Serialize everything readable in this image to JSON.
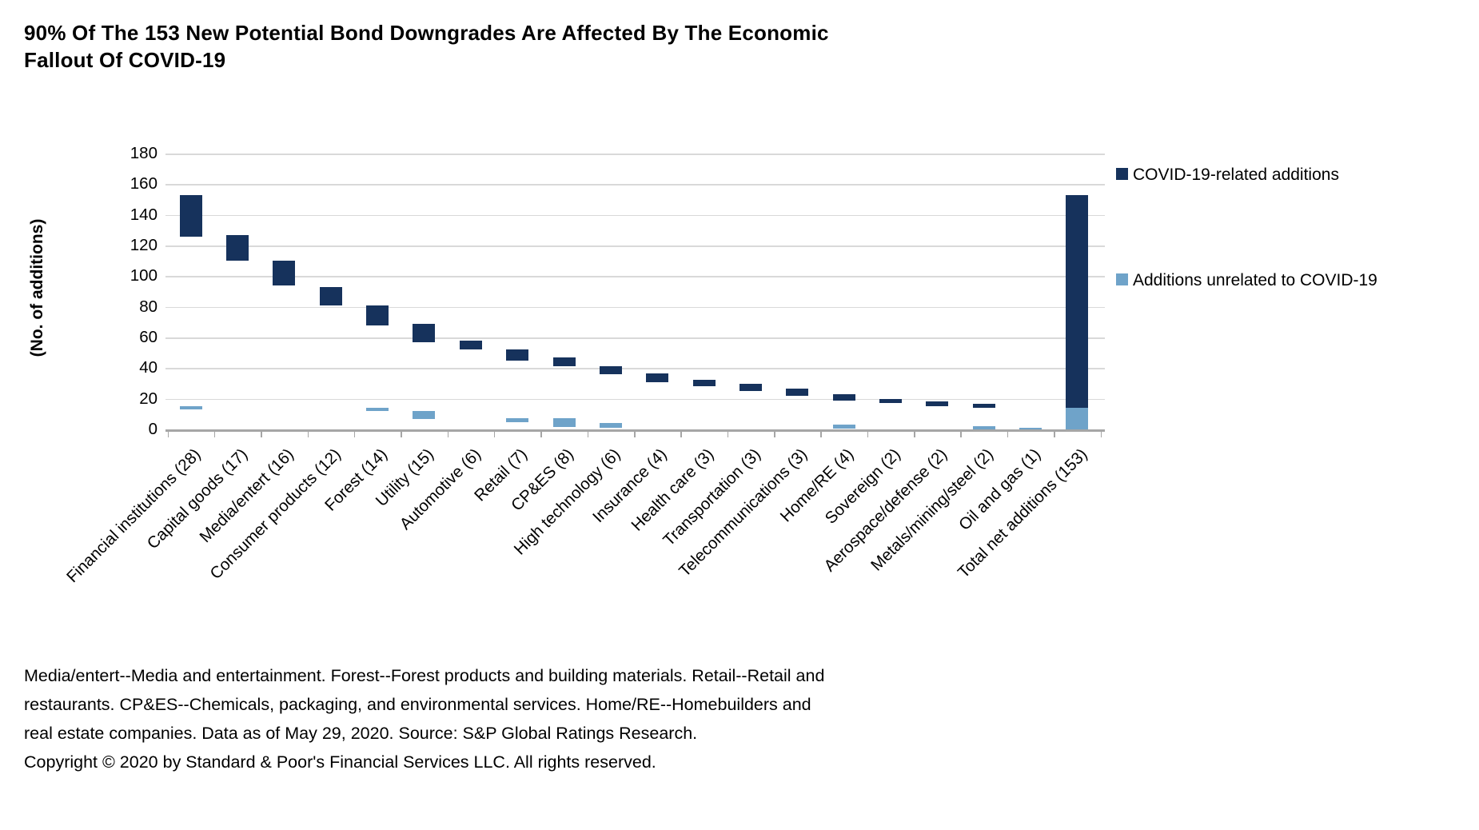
{
  "title": {
    "line1": "90% Of The 153 New Potential Bond Downgrades Are Affected By The Economic",
    "line2": "Fallout Of COVID-19"
  },
  "colors": {
    "covid_series": "#16325c",
    "unrelated_series": "#6fa3c9",
    "gridline": "#d9d9d9",
    "axis": "#a6a6a6",
    "text": "#000000",
    "background": "#ffffff"
  },
  "chart_data": {
    "type": "bar",
    "subtype": "waterfall",
    "title": "90% Of The 153 New Potential Bond Downgrades Are Affected By The Economic Fallout Of COVID-19",
    "ylabel": "(No. of additions)",
    "ylim": [
      0,
      180
    ],
    "ytick_step": 20,
    "grid": true,
    "legend_position": "right",
    "series": [
      {
        "name": "COVID-19-related additions",
        "color": "#16325c"
      },
      {
        "name": "Additions unrelated to COVID-19",
        "color": "#6fa3c9"
      }
    ],
    "categories": [
      {
        "label": "Financial institutions (28)",
        "total": 28,
        "covid": [
          126,
          153
        ],
        "unrelated": [
          13,
          15
        ]
      },
      {
        "label": "Capital goods (17)",
        "total": 17,
        "covid": [
          110,
          127
        ],
        "unrelated": null
      },
      {
        "label": "Media/entert (16)",
        "total": 16,
        "covid": [
          94,
          110
        ],
        "unrelated": null
      },
      {
        "label": "Consumer products (12)",
        "total": 12,
        "covid": [
          81,
          93
        ],
        "unrelated": null
      },
      {
        "label": "Forest (14)",
        "total": 14,
        "covid": [
          68,
          81
        ],
        "unrelated": [
          12,
          14
        ]
      },
      {
        "label": "Utility (15)",
        "total": 15,
        "covid": [
          57,
          69
        ],
        "unrelated": [
          7,
          12
        ]
      },
      {
        "label": "Automotive (6)",
        "total": 6,
        "covid": [
          52,
          58
        ],
        "unrelated": null
      },
      {
        "label": "Retail (7)",
        "total": 7,
        "covid": [
          45,
          52
        ],
        "unrelated": [
          4.5,
          7.5
        ]
      },
      {
        "label": "CP&ES (8)",
        "total": 8,
        "covid": [
          41,
          47
        ],
        "unrelated": [
          1.5,
          7.5
        ]
      },
      {
        "label": "High technology (6)",
        "total": 6,
        "covid": [
          36,
          41
        ],
        "unrelated": [
          1,
          4
        ]
      },
      {
        "label": "Insurance (4)",
        "total": 4,
        "covid": [
          31,
          36.5
        ],
        "unrelated": null
      },
      {
        "label": "Health care (3)",
        "total": 3,
        "covid": [
          28,
          32.5
        ],
        "unrelated": null
      },
      {
        "label": "Transportation (3)",
        "total": 3,
        "covid": [
          25,
          29.5
        ],
        "unrelated": null
      },
      {
        "label": "Telecommunications (3)",
        "total": 3,
        "covid": [
          22,
          26.5
        ],
        "unrelated": null
      },
      {
        "label": "Home/RE (4)",
        "total": 4,
        "covid": [
          19,
          23
        ],
        "unrelated": [
          0.5,
          3
        ]
      },
      {
        "label": "Sovereign (2)",
        "total": 2,
        "covid": [
          17,
          20
        ],
        "unrelated": null
      },
      {
        "label": "Aerospace/defense (2)",
        "total": 2,
        "covid": [
          15,
          18.5
        ],
        "unrelated": null
      },
      {
        "label": "Metals/mining/steel (2)",
        "total": 2,
        "covid": [
          14,
          16.5
        ],
        "unrelated": [
          0,
          2
        ]
      },
      {
        "label": "Oil and gas (1)",
        "total": 1,
        "covid": null,
        "unrelated": [
          0,
          1
        ]
      },
      {
        "label": "Total net additions (153)",
        "total": 153,
        "covid": [
          14,
          153
        ],
        "unrelated": [
          0,
          14
        ]
      }
    ]
  },
  "footnote": {
    "lines": [
      "Media/entert--Media and entertainment. Forest--Forest products and building materials. Retail--Retail and",
      "restaurants. CP&ES--Chemicals, packaging, and environmental services. Home/RE--Homebuilders and",
      "real estate companies. Data as of May 29, 2020. Source: S&P Global Ratings Research.",
      "Copyright © 2020 by Standard & Poor's Financial Services LLC. All rights reserved."
    ]
  }
}
